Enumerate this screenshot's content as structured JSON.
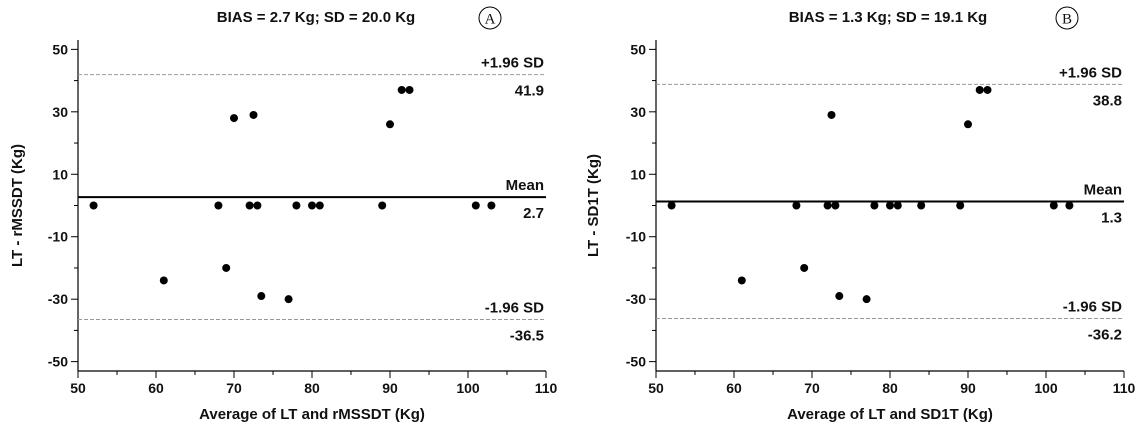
{
  "colors": {
    "points": "#000000",
    "mean_line": "#000000",
    "limit_line": "#999999",
    "axis": "#000000",
    "text": "#111111"
  },
  "chart_data": [
    {
      "type": "scatter",
      "panel_label": "A",
      "title": "BIAS = 2.7 Kg; SD = 20.0 Kg",
      "xlabel": "Average of LT and rMSSDT (Kg)",
      "ylabel": "LT - rMSSDT (Kg)",
      "xlim": [
        50,
        110
      ],
      "ylim": [
        -53,
        53
      ],
      "xticks": [
        50,
        60,
        70,
        80,
        90,
        100,
        110
      ],
      "yticks": [
        -50,
        -30,
        -10,
        10,
        30,
        50
      ],
      "grid": false,
      "mean": {
        "label": "Mean",
        "value": 2.7,
        "value_text": "2.7"
      },
      "upper_loa": {
        "label": "+1.96 SD",
        "value": 41.9,
        "value_text": "41.9"
      },
      "lower_loa": {
        "label": "-1.96 SD",
        "value": -36.5,
        "value_text": "-36.5"
      },
      "points": [
        {
          "x": 52,
          "y": 0
        },
        {
          "x": 61,
          "y": -24
        },
        {
          "x": 68,
          "y": 0
        },
        {
          "x": 69,
          "y": -20
        },
        {
          "x": 70,
          "y": 28
        },
        {
          "x": 72,
          "y": 0
        },
        {
          "x": 72.5,
          "y": 29
        },
        {
          "x": 73,
          "y": 0
        },
        {
          "x": 73.5,
          "y": -29
        },
        {
          "x": 77,
          "y": -30
        },
        {
          "x": 78,
          "y": 0
        },
        {
          "x": 80,
          "y": 0
        },
        {
          "x": 81,
          "y": 0
        },
        {
          "x": 89,
          "y": 0
        },
        {
          "x": 90,
          "y": 26
        },
        {
          "x": 91.5,
          "y": 37
        },
        {
          "x": 92.5,
          "y": 37
        },
        {
          "x": 101,
          "y": 0
        },
        {
          "x": 103,
          "y": 0
        }
      ]
    },
    {
      "type": "scatter",
      "panel_label": "B",
      "title": "BIAS = 1.3 Kg; SD = 19.1 Kg",
      "xlabel": "Average of LT and SD1T (Kg)",
      "ylabel": "LT - SD1T (Kg)",
      "xlim": [
        50,
        110
      ],
      "ylim": [
        -53,
        53
      ],
      "xticks": [
        50,
        60,
        70,
        80,
        90,
        100,
        110
      ],
      "yticks": [
        -50,
        -30,
        -10,
        10,
        30,
        50
      ],
      "grid": false,
      "mean": {
        "label": "Mean",
        "value": 1.3,
        "value_text": "1.3"
      },
      "upper_loa": {
        "label": "+1.96 SD",
        "value": 38.8,
        "value_text": "38.8"
      },
      "lower_loa": {
        "label": "-1.96 SD",
        "value": -36.2,
        "value_text": "-36.2"
      },
      "points": [
        {
          "x": 52,
          "y": 0
        },
        {
          "x": 61,
          "y": -24
        },
        {
          "x": 68,
          "y": 0
        },
        {
          "x": 69,
          "y": -20
        },
        {
          "x": 72,
          "y": 0
        },
        {
          "x": 72.5,
          "y": 29
        },
        {
          "x": 73,
          "y": 0
        },
        {
          "x": 73.5,
          "y": -29
        },
        {
          "x": 77,
          "y": -30
        },
        {
          "x": 78,
          "y": 0
        },
        {
          "x": 80,
          "y": 0
        },
        {
          "x": 81,
          "y": 0
        },
        {
          "x": 84,
          "y": 0
        },
        {
          "x": 89,
          "y": 0
        },
        {
          "x": 90,
          "y": 26
        },
        {
          "x": 91.5,
          "y": 37
        },
        {
          "x": 92.5,
          "y": 37
        },
        {
          "x": 101,
          "y": 0
        },
        {
          "x": 103,
          "y": 0
        }
      ]
    }
  ]
}
